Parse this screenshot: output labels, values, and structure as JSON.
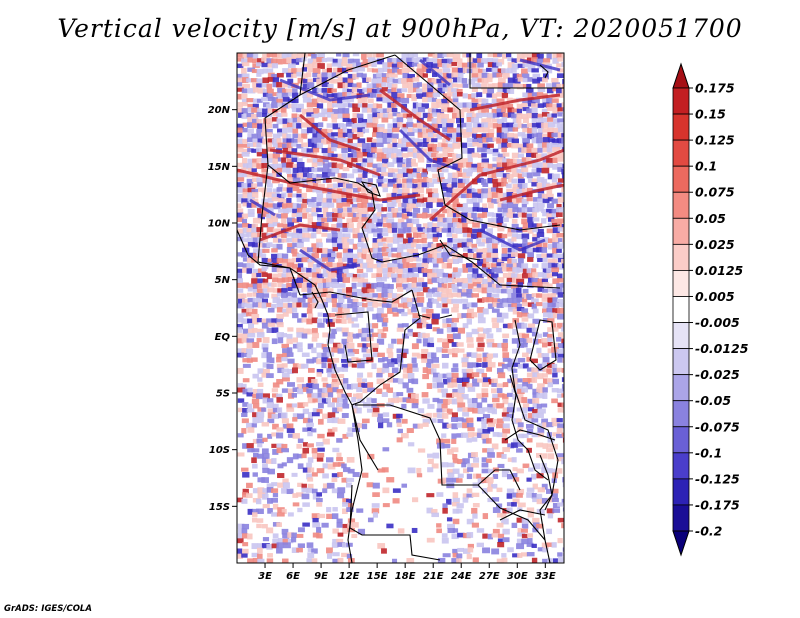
{
  "title": "Vertical velocity [m/s] at 900hPa, VT: 2020051700",
  "variable": "Vertical velocity",
  "units": "m/s",
  "level": "900hPa",
  "valid_time": "2020051700",
  "credit": "GrADS: IGES/COLA",
  "lat_axis": {
    "labels": [
      "20N",
      "15N",
      "10N",
      "5N",
      "EQ",
      "5S",
      "10S",
      "15S"
    ],
    "values": [
      20,
      15,
      10,
      5,
      0,
      -5,
      -10,
      -15
    ],
    "range": [
      -20,
      25
    ]
  },
  "lon_axis": {
    "labels": [
      "3E",
      "6E",
      "9E",
      "12E",
      "15E",
      "18E",
      "21E",
      "24E",
      "27E",
      "30E",
      "33E"
    ],
    "values": [
      3,
      6,
      9,
      12,
      15,
      18,
      21,
      24,
      27,
      30,
      33
    ],
    "range": [
      0,
      35
    ]
  },
  "colorbar": {
    "levels": [
      "0.175",
      "0.15",
      "0.125",
      "0.1",
      "0.075",
      "0.05",
      "0.025",
      "0.0125",
      "0.005",
      "-0.005",
      "-0.0125",
      "-0.025",
      "-0.05",
      "-0.075",
      "-0.1",
      "-0.125",
      "-0.175",
      "-0.2"
    ],
    "colors": [
      "#a50f15",
      "#c31f22",
      "#d7342d",
      "#e24a42",
      "#ec6a5f",
      "#f38b82",
      "#f8aca5",
      "#fbcdc8",
      "#fde8e5",
      "#ffffff",
      "#e6e3f6",
      "#ccc8f0",
      "#aba5e8",
      "#8a82df",
      "#6a60d6",
      "#4a3ecb",
      "#2d22b5",
      "#1a0e96",
      "#0a007a"
    ],
    "top_arrow_color": "#a50f15",
    "bottom_arrow_color": "#0a007a"
  },
  "field_colors": {
    "strong_up": "#c0252a",
    "up": "#f08a82",
    "weak_up": "#f8c5c0",
    "weak_down": "#c9c4f0",
    "down": "#8a82df",
    "strong_down": "#3a2fc4",
    "background": "#ffffff"
  }
}
